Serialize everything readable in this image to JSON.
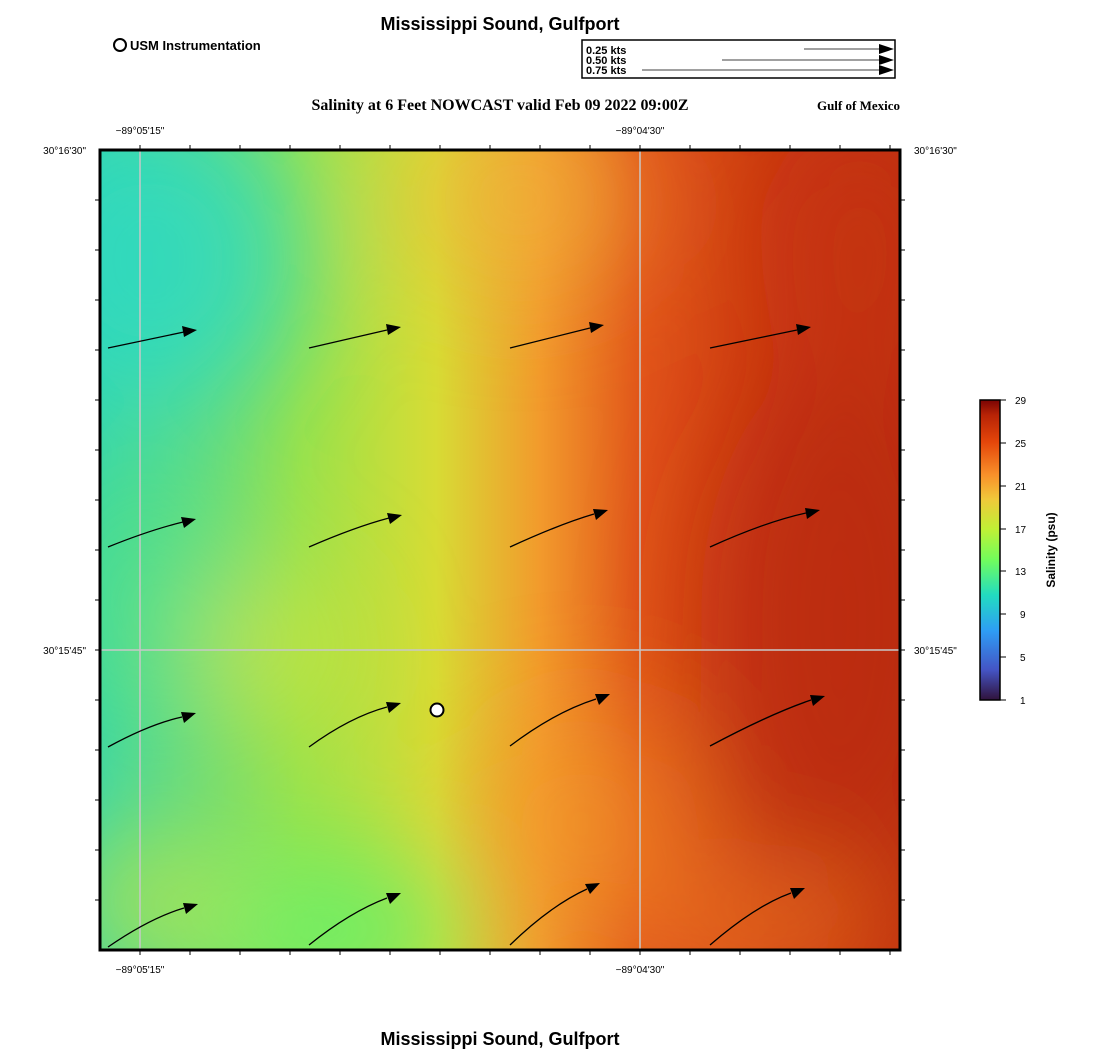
{
  "page": {
    "title_top": "Mississippi Sound, Gulfport",
    "title_bottom": "Mississippi Sound, Gulfport",
    "subtitle": "Salinity at 6 Feet NOWCAST valid Feb 09 2022 09:00Z",
    "region_label": "Gulf of Mexico"
  },
  "legend": {
    "station_label": "USM Instrumentation",
    "vector_keys": [
      "0.25 kts",
      "0.50 kts",
      "0.75 kts"
    ]
  },
  "map": {
    "lon_ticks": [
      "−89°05'15\"",
      "−89°04'30\""
    ],
    "lat_ticks": [
      "30°16'30\"",
      "30°15'45\""
    ]
  },
  "colorbar": {
    "label": "Salinity (psu)",
    "ticks": [
      "29",
      "25",
      "21",
      "17",
      "13",
      "9",
      "5",
      "1"
    ]
  },
  "colors": {
    "background": "#ffffff",
    "grid": "#c8c8c8",
    "arrow": "#000000"
  }
}
